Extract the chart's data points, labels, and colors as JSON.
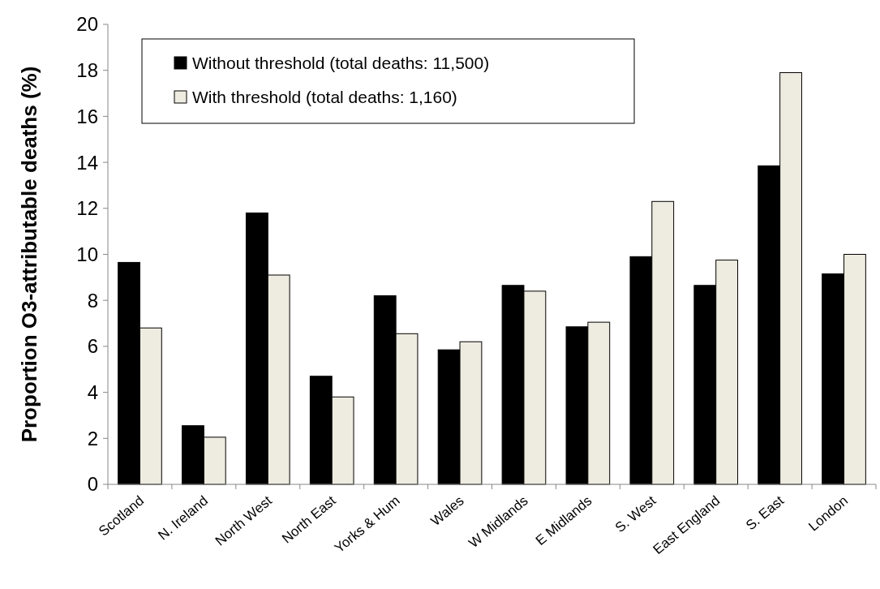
{
  "chart_data": {
    "type": "bar",
    "ylabel": "Proportion O3-attributable deaths (%)",
    "categories": [
      "Scotland",
      "N. Ireland",
      "North West",
      "North East",
      "Yorks & Hum",
      "Wales",
      "W Midlands",
      "E Midlands",
      "S. West",
      "East England",
      "S. East",
      "London"
    ],
    "series": [
      {
        "name": "Without threshold (total deaths: 11,500)",
        "color": "#000000",
        "values": [
          9.65,
          2.55,
          11.8,
          4.7,
          8.2,
          5.85,
          8.65,
          6.85,
          9.9,
          8.65,
          13.85,
          9.15
        ]
      },
      {
        "name": "With threshold (total deaths: 1,160)",
        "color": "#eeebe0",
        "values": [
          6.8,
          2.05,
          9.1,
          3.8,
          6.55,
          6.2,
          8.4,
          7.05,
          12.3,
          9.75,
          17.9,
          10.0
        ]
      }
    ],
    "ylim": [
      0,
      20
    ],
    "yticks": [
      0,
      2,
      4,
      6,
      8,
      10,
      12,
      14,
      16,
      18,
      20
    ],
    "grid": false,
    "legend": "top left"
  }
}
